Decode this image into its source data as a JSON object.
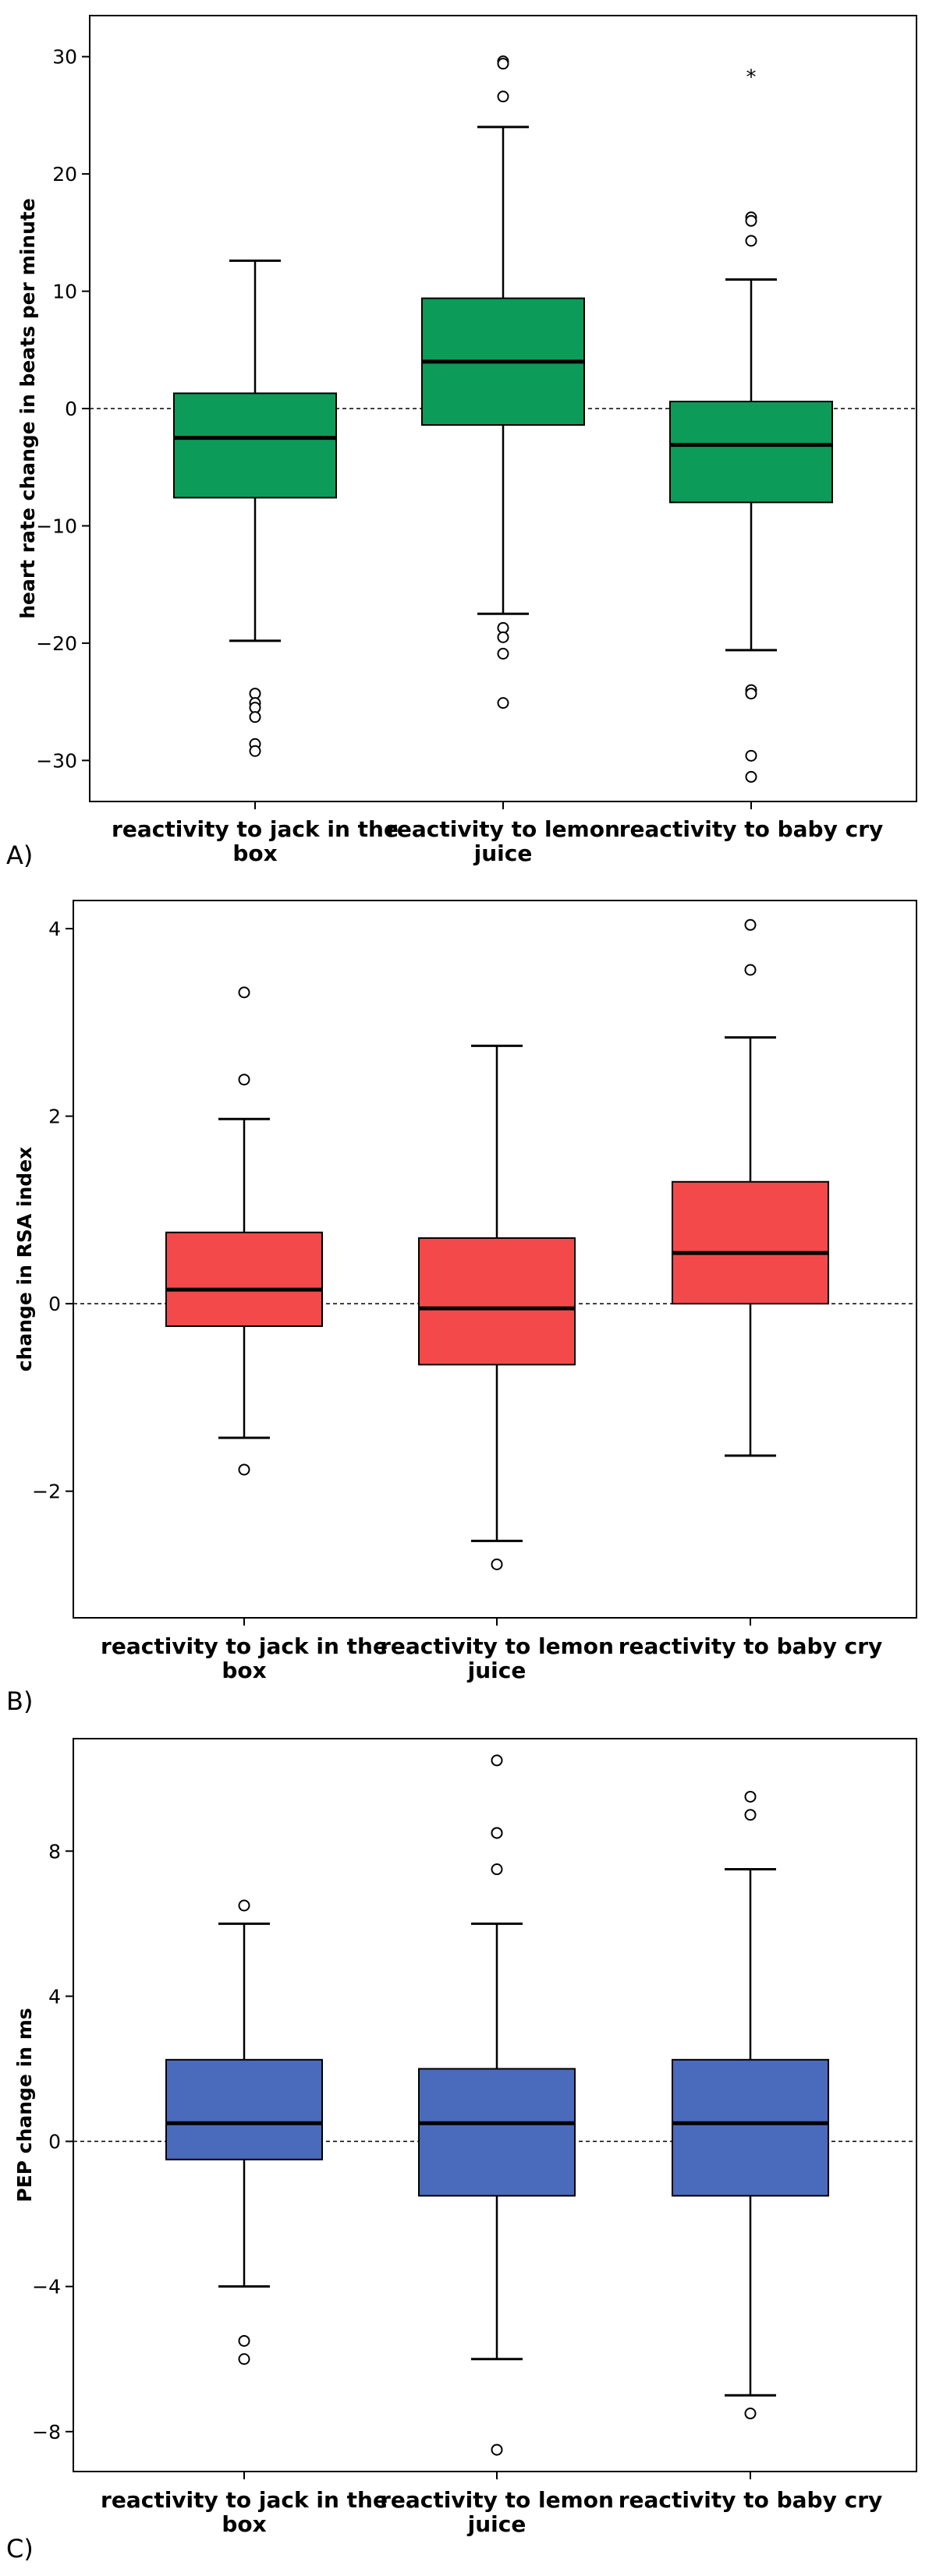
{
  "chart_data": [
    {
      "type": "boxplot",
      "panel_label": "A)",
      "ylabel": "heart rate change in beats per minute",
      "xlabel": "",
      "ylim": [
        -33.5,
        33.5
      ],
      "yticks": [
        30,
        20,
        10,
        0,
        -10,
        -20,
        -30
      ],
      "reference_line": 0,
      "color": "#0c9b59",
      "categories": [
        {
          "line1": "reactivity to jack in the",
          "line2": "box"
        },
        {
          "line1": "reactivity to lemon",
          "line2": "juice"
        },
        {
          "line1": "reactivity to baby cry",
          "line2": ""
        }
      ],
      "boxes": [
        {
          "whisker_low": -19.8,
          "q1": -7.6,
          "median": -2.5,
          "q3": 1.3,
          "whisker_high": 12.6,
          "outliers": [
            -24.3,
            -25.1,
            -25.5,
            -26.3,
            -28.6,
            -29.2
          ],
          "extremes": []
        },
        {
          "whisker_low": -17.5,
          "q1": -1.4,
          "median": 4.0,
          "q3": 9.4,
          "whisker_high": 24.0,
          "outliers": [
            29.6,
            29.4,
            26.6,
            -18.7,
            -19.5,
            -20.9,
            -25.1
          ],
          "extremes": []
        },
        {
          "whisker_low": -20.6,
          "q1": -8.0,
          "median": -3.1,
          "q3": 0.6,
          "whisker_high": 11.0,
          "outliers": [
            16.3,
            16.0,
            14.3,
            -24.0,
            -24.3,
            -29.6,
            -31.4
          ],
          "extremes": [
            28.4
          ]
        }
      ]
    },
    {
      "type": "boxplot",
      "panel_label": "B)",
      "ylabel": "change in RSA index",
      "xlabel": "",
      "ylim": [
        -3.35,
        4.3
      ],
      "yticks": [
        4,
        2,
        0,
        -2
      ],
      "reference_line": 0,
      "color": "#f4494a",
      "categories": [
        {
          "line1": "reactivity to jack in the",
          "line2": "box"
        },
        {
          "line1": "reactivity to lemon",
          "line2": "juice"
        },
        {
          "line1": "reactivity to baby cry",
          "line2": ""
        }
      ],
      "boxes": [
        {
          "whisker_low": -1.43,
          "q1": -0.24,
          "median": 0.15,
          "q3": 0.76,
          "whisker_high": 1.97,
          "outliers": [
            3.32,
            2.39,
            -1.77
          ],
          "extremes": []
        },
        {
          "whisker_low": -2.53,
          "q1": -0.65,
          "median": -0.05,
          "q3": 0.7,
          "whisker_high": 2.75,
          "outliers": [
            -2.78
          ],
          "extremes": []
        },
        {
          "whisker_low": -1.62,
          "q1": 0.0,
          "median": 0.54,
          "q3": 1.3,
          "whisker_high": 2.84,
          "outliers": [
            4.04,
            3.56
          ],
          "extremes": []
        }
      ]
    },
    {
      "type": "boxplot",
      "panel_label": "C)",
      "ylabel": "PEP change in ms",
      "xlabel": "",
      "ylim": [
        -9.1,
        11.1
      ],
      "yticks": [
        8,
        4,
        0,
        -4,
        -8
      ],
      "reference_line": 0,
      "color": "#4a6abb",
      "categories": [
        {
          "line1": "reactivity to jack in the",
          "line2": "box"
        },
        {
          "line1": "reactivity to lemon",
          "line2": "juice"
        },
        {
          "line1": "reactivity to baby cry",
          "line2": ""
        }
      ],
      "boxes": [
        {
          "whisker_low": -4.0,
          "q1": -0.5,
          "median": 0.5,
          "q3": 2.25,
          "whisker_high": 6.0,
          "outliers": [
            6.5,
            -5.5,
            -6.0
          ],
          "extremes": []
        },
        {
          "whisker_low": -6.0,
          "q1": -1.5,
          "median": 0.5,
          "q3": 2.0,
          "whisker_high": 6.0,
          "outliers": [
            10.5,
            8.5,
            8.5,
            7.5,
            -8.5
          ],
          "extremes": []
        },
        {
          "whisker_low": -7.0,
          "q1": -1.5,
          "median": 0.5,
          "q3": 2.25,
          "whisker_high": 7.5,
          "outliers": [
            9.5,
            9.0,
            -7.5
          ],
          "extremes": []
        }
      ]
    }
  ]
}
